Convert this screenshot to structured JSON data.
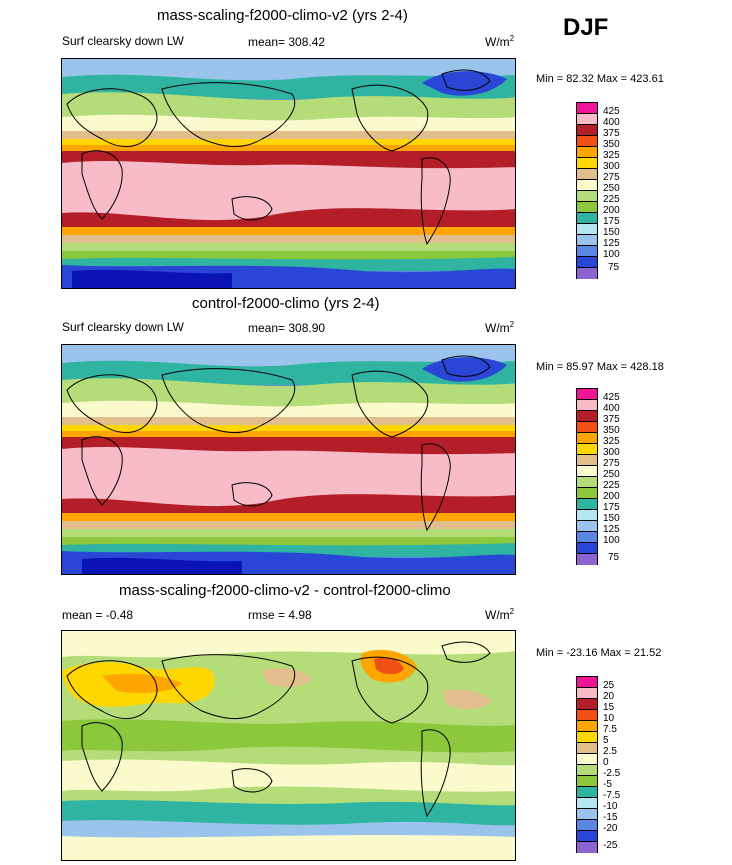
{
  "season": "DJF",
  "units_main": "W/m",
  "units_exp": "2",
  "colors": {
    "abs": [
      "#8c64d2",
      "#0a14b4",
      "#2a46d6",
      "#5a87e4",
      "#9ac4ec",
      "#b4e6f0",
      "#2eb4a0",
      "#8cc83c",
      "#b4dc78",
      "#fafacc",
      "#e1be8c",
      "#ffd700",
      "#ffa500",
      "#f05014",
      "#b41e28",
      "#f8bcc8",
      "#f01496"
    ],
    "diff": [
      "#8c64d2",
      "#0a14b4",
      "#2a46d6",
      "#5a87e4",
      "#9ac4ec",
      "#b4e6f0",
      "#2eb4a0",
      "#8cc83c",
      "#b4dc78",
      "#fafacc",
      "#e1be8c",
      "#ffd700",
      "#ffa500",
      "#f05014",
      "#b41e28",
      "#f8bcc8",
      "#f01496"
    ]
  },
  "panels": [
    {
      "title": "mass-scaling-f2000-climo-v2 (yrs 2-4)",
      "variable": "Surf clearsky down LW",
      "mean": "mean= 308.42",
      "minmax": "Min =  82.32 Max = 423.61",
      "levels": [
        "425",
        "400",
        "375",
        "350",
        "325",
        "300",
        "275",
        "250",
        "225",
        "200",
        "175",
        "150",
        "125",
        "100",
        "75"
      ]
    },
    {
      "title": "control-f2000-climo (yrs 2-4)",
      "variable": "Surf clearsky down LW",
      "mean": "mean= 308.90",
      "minmax": "Min =  85.97 Max = 428.18",
      "levels": [
        "425",
        "400",
        "375",
        "350",
        "325",
        "300",
        "275",
        "250",
        "225",
        "200",
        "175",
        "150",
        "125",
        "100",
        "75"
      ]
    },
    {
      "title": "mass-scaling-f2000-climo-v2 - control-f2000-climo",
      "mean": "mean =  -0.48",
      "rmse": "rmse =   4.98",
      "minmax": "Min = -23.16 Max =  21.52",
      "levels": [
        "25",
        "20",
        "15",
        "10",
        "7.5",
        "5",
        "2.5",
        "0",
        "-2.5",
        "-5",
        "-7.5",
        "-10",
        "-15",
        "-20",
        "-25"
      ]
    }
  ]
}
